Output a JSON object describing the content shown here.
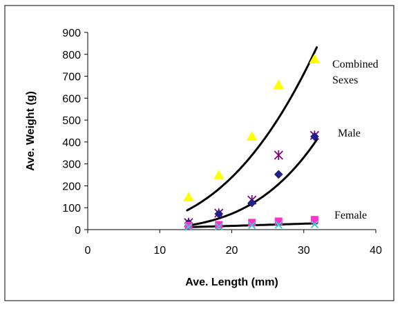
{
  "chart_data": {
    "type": "scatter",
    "title": "",
    "xlabel": "Ave. Length (mm)",
    "ylabel": "Ave. Weight (g)",
    "xlim": [
      0,
      40
    ],
    "ylim": [
      0,
      900
    ],
    "x_ticks": [
      "0",
      "10",
      "20",
      "30",
      "40"
    ],
    "y_ticks": [
      "0",
      "100",
      "200",
      "300",
      "400",
      "500",
      "600",
      "700",
      "800",
      "900"
    ],
    "grid": false,
    "legend": "none",
    "annotations": [
      {
        "id": "combined",
        "lines": [
          "Combined",
          "Sexes"
        ]
      },
      {
        "id": "male",
        "lines": [
          "Male"
        ]
      },
      {
        "id": "female",
        "lines": [
          "Female"
        ]
      }
    ],
    "series": [
      {
        "marker": "triangle",
        "color": "#ffff00",
        "points": [
          [
            14,
            148
          ],
          [
            18.2,
            248
          ],
          [
            22.8,
            425
          ],
          [
            26.5,
            660
          ],
          [
            31.5,
            778
          ]
        ]
      },
      {
        "marker": "asterisk",
        "color": "#800080",
        "points": [
          [
            14,
            32
          ],
          [
            18.2,
            75
          ],
          [
            22.8,
            135
          ],
          [
            26.5,
            340
          ],
          [
            31.5,
            430
          ]
        ]
      },
      {
        "marker": "diamond",
        "color": "#1f1f8f",
        "points": [
          [
            14,
            30
          ],
          [
            18.2,
            72
          ],
          [
            22.8,
            122
          ],
          [
            26.5,
            252
          ],
          [
            31.5,
            425
          ]
        ]
      },
      {
        "marker": "square",
        "color": "#ff33cc",
        "points": [
          [
            14,
            18
          ],
          [
            18.2,
            22
          ],
          [
            22.8,
            32
          ],
          [
            26.5,
            38
          ],
          [
            31.5,
            45
          ]
        ]
      },
      {
        "marker": "cross",
        "color": "#33cccc",
        "points": [
          [
            14,
            12
          ],
          [
            18.2,
            14
          ],
          [
            22.8,
            20
          ],
          [
            26.5,
            22
          ],
          [
            31.5,
            24
          ]
        ]
      }
    ],
    "trendlines": [
      {
        "id": "combined-trend",
        "x_range": [
          13.8,
          31.8
        ],
        "a": 0.0756,
        "b": 2.69
      },
      {
        "id": "male-trend",
        "x_range": [
          13.8,
          31.8
        ],
        "a": 0.00102,
        "b": 3.73
      },
      {
        "id": "female-trend",
        "x_range": [
          13.8,
          31.8
        ],
        "a": 0.58,
        "b": 1.13
      }
    ]
  }
}
